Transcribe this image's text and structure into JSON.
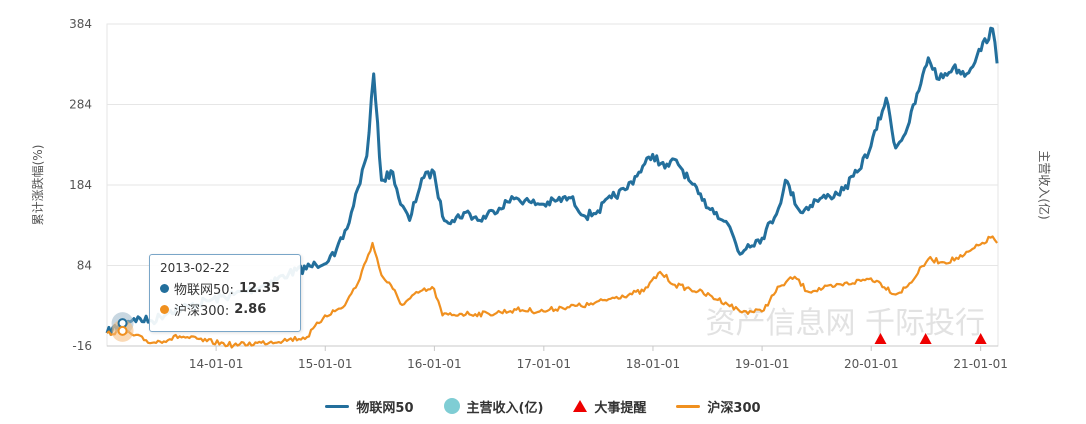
{
  "chart_data": {
    "type": "line",
    "xlabel": "",
    "ylabel_left": "累计涨跌幅(%)",
    "ylabel_right": "主营收入(亿)",
    "ylim": [
      -16,
      384
    ],
    "y_ticks": [
      "384",
      "284",
      "184",
      "84",
      "-16"
    ],
    "x_ticks": [
      "14-01-01",
      "15-01-01",
      "16-01-01",
      "17-01-01",
      "18-01-01",
      "19-01-01",
      "20-01-01",
      "21-01-01"
    ],
    "x_range": [
      "2013-01-01",
      "2021-02-28"
    ],
    "grid": true,
    "legend_position": "bottom",
    "series": [
      {
        "name": "物联网50",
        "color": "#236f9c",
        "points": [
          [
            "2013-01-01",
            0
          ],
          [
            "2013-02-22",
            12.35
          ],
          [
            "2013-04-01",
            18
          ],
          [
            "2013-06-01",
            15
          ],
          [
            "2013-08-01",
            28
          ],
          [
            "2013-10-01",
            33
          ],
          [
            "2013-12-01",
            40
          ],
          [
            "2014-03-01",
            48
          ],
          [
            "2014-06-01",
            58
          ],
          [
            "2014-09-01",
            74
          ],
          [
            "2014-12-01",
            85
          ],
          [
            "2015-02-01",
            96
          ],
          [
            "2015-03-15",
            130
          ],
          [
            "2015-04-20",
            180
          ],
          [
            "2015-05-20",
            220
          ],
          [
            "2015-06-12",
            322
          ],
          [
            "2015-07-08",
            190
          ],
          [
            "2015-08-15",
            200
          ],
          [
            "2015-09-10",
            160
          ],
          [
            "2015-10-10",
            140
          ],
          [
            "2015-11-20",
            192
          ],
          [
            "2015-12-31",
            200
          ],
          [
            "2016-01-28",
            145
          ],
          [
            "2016-03-01",
            140
          ],
          [
            "2016-04-15",
            150
          ],
          [
            "2016-06-01",
            140
          ],
          [
            "2016-07-15",
            152
          ],
          [
            "2016-09-01",
            163
          ],
          [
            "2016-10-01",
            168
          ],
          [
            "2016-11-20",
            162
          ],
          [
            "2017-01-01",
            160
          ],
          [
            "2017-02-15",
            165
          ],
          [
            "2017-04-01",
            168
          ],
          [
            "2017-05-20",
            145
          ],
          [
            "2017-07-01",
            152
          ],
          [
            "2017-08-15",
            168
          ],
          [
            "2017-09-30",
            178
          ],
          [
            "2017-11-15",
            200
          ],
          [
            "2017-12-31",
            222
          ],
          [
            "2018-02-10",
            205
          ],
          [
            "2018-03-20",
            215
          ],
          [
            "2018-05-01",
            190
          ],
          [
            "2018-06-15",
            165
          ],
          [
            "2018-08-01",
            150
          ],
          [
            "2018-09-15",
            132
          ],
          [
            "2018-10-19",
            98
          ],
          [
            "2018-11-15",
            110
          ],
          [
            "2019-01-01",
            118
          ],
          [
            "2019-02-25",
            155
          ],
          [
            "2019-03-20",
            190
          ],
          [
            "2019-05-10",
            150
          ],
          [
            "2019-07-01",
            165
          ],
          [
            "2019-08-15",
            170
          ],
          [
            "2019-10-01",
            178
          ],
          [
            "2019-11-15",
            200
          ],
          [
            "2019-12-31",
            232
          ],
          [
            "2020-02-20",
            292
          ],
          [
            "2020-03-23",
            230
          ],
          [
            "2020-05-01",
            255
          ],
          [
            "2020-06-15",
            310
          ],
          [
            "2020-07-10",
            342
          ],
          [
            "2020-08-15",
            315
          ],
          [
            "2020-10-01",
            330
          ],
          [
            "2020-11-15",
            322
          ],
          [
            "2020-12-20",
            345
          ],
          [
            "2021-02-10",
            378
          ],
          [
            "2021-02-25",
            335
          ]
        ]
      },
      {
        "name": "沪深300",
        "color": "#f0901f",
        "points": [
          [
            "2013-01-01",
            0
          ],
          [
            "2013-02-22",
            2.86
          ],
          [
            "2013-04-01",
            -3
          ],
          [
            "2013-06-01",
            -12
          ],
          [
            "2013-09-01",
            -4
          ],
          [
            "2013-12-01",
            -10
          ],
          [
            "2014-03-01",
            -15
          ],
          [
            "2014-06-01",
            -12
          ],
          [
            "2014-09-01",
            -8
          ],
          [
            "2014-11-01",
            -5
          ],
          [
            "2014-12-31",
            22
          ],
          [
            "2015-03-01",
            32
          ],
          [
            "2015-04-20",
            62
          ],
          [
            "2015-06-08",
            112
          ],
          [
            "2015-07-08",
            72
          ],
          [
            "2015-08-15",
            55
          ],
          [
            "2015-09-15",
            35
          ],
          [
            "2015-11-15",
            52
          ],
          [
            "2015-12-31",
            55
          ],
          [
            "2016-01-28",
            22
          ],
          [
            "2016-04-01",
            24
          ],
          [
            "2016-07-01",
            24
          ],
          [
            "2016-10-01",
            29
          ],
          [
            "2016-12-31",
            27
          ],
          [
            "2017-03-01",
            32
          ],
          [
            "2017-06-01",
            35
          ],
          [
            "2017-09-01",
            45
          ],
          [
            "2017-12-01",
            52
          ],
          [
            "2018-01-25",
            76
          ],
          [
            "2018-03-15",
            60
          ],
          [
            "2018-06-01",
            52
          ],
          [
            "2018-09-01",
            38
          ],
          [
            "2018-10-19",
            27
          ],
          [
            "2018-12-31",
            27
          ],
          [
            "2019-03-01",
            58
          ],
          [
            "2019-04-20",
            70
          ],
          [
            "2019-06-01",
            52
          ],
          [
            "2019-09-01",
            58
          ],
          [
            "2019-12-31",
            68
          ],
          [
            "2020-02-01",
            62
          ],
          [
            "2020-03-23",
            48
          ],
          [
            "2020-05-01",
            58
          ],
          [
            "2020-07-10",
            92
          ],
          [
            "2020-09-01",
            88
          ],
          [
            "2020-11-01",
            95
          ],
          [
            "2020-12-31",
            110
          ],
          [
            "2021-02-10",
            120
          ],
          [
            "2021-02-25",
            112
          ]
        ]
      }
    ],
    "event_markers": {
      "name": "大事提醒",
      "color": "#ee0000",
      "dates": [
        "2020-02-01",
        "2020-07-01",
        "2021-01-01"
      ]
    },
    "revenue_series": {
      "name": "主营收入(亿)",
      "color": "#7fcdd4",
      "points": [
        [
          "2013-02-22",
          12
        ]
      ]
    }
  },
  "legend": {
    "series1": "物联网50",
    "revenue": "主营收入(亿)",
    "events": "大事提醒",
    "series2": "沪深300"
  },
  "tooltip": {
    "date": "2013-02-22",
    "row1_label": "物联网50:",
    "row1_value": "12.35",
    "row2_label": "沪深300:",
    "row2_value": "2.86",
    "row1_color": "#236f9c",
    "row2_color": "#f0901f"
  },
  "watermark": "资产信息网 千际投行"
}
